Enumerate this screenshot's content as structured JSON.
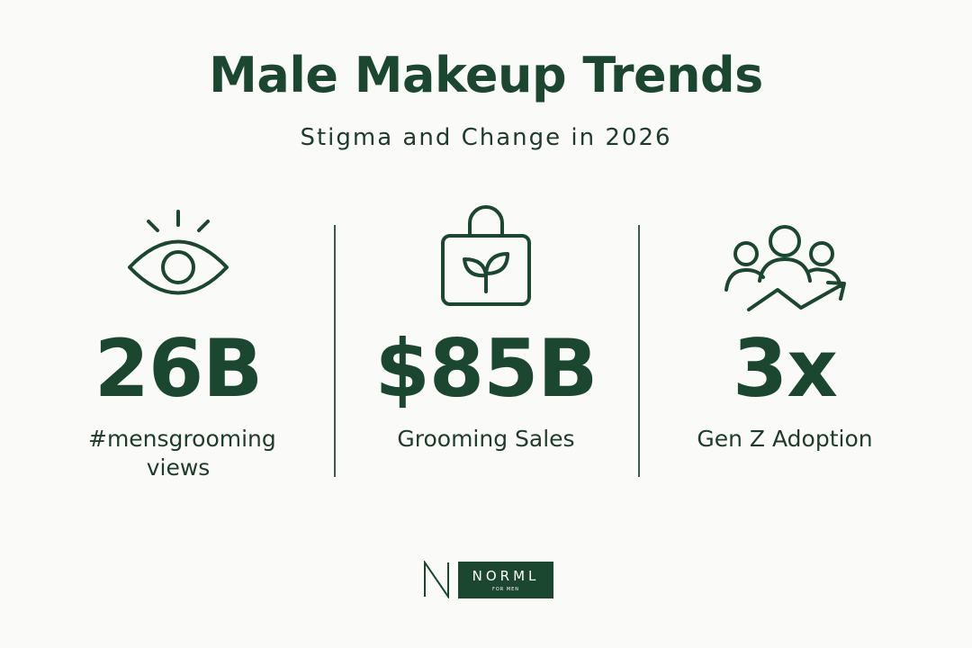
{
  "header": {
    "title": "Male Makeup Trends",
    "subtitle": "Stigma and Change in 2026"
  },
  "stats": [
    {
      "value": "26B",
      "label": "#mensgrooming views"
    },
    {
      "value": "$85B",
      "label": "Grooming Sales"
    },
    {
      "value": "3x",
      "label": "Gen Z Adoption"
    }
  ],
  "footer": {
    "brand": "NORML",
    "tagline": "FOR MEN"
  }
}
